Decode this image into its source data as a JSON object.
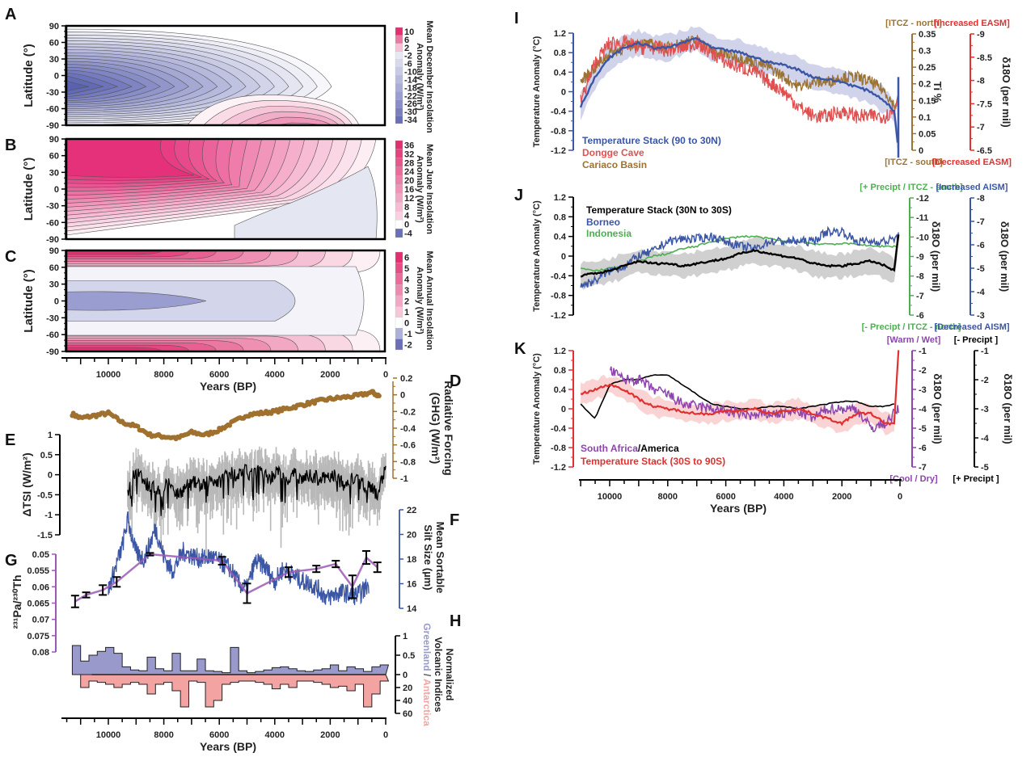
{
  "chart_data": [
    {
      "id": "A",
      "type": "heatmap",
      "ylabel": "Latitude (°)",
      "xlabel": "Years (BP)",
      "yticks": [
        90,
        60,
        30,
        0,
        -30,
        -60,
        -90
      ],
      "colorbar_label": "Mean December Insolation Anomaly (W/m²)",
      "colorbar_ticks": [
        10,
        6,
        2,
        -2,
        -6,
        -10,
        -14,
        -18,
        -22,
        -26,
        -30,
        -34
      ],
      "xlim": [
        11500,
        0
      ],
      "ylim": [
        -90,
        90
      ]
    },
    {
      "id": "B",
      "type": "heatmap",
      "ylabel": "Latitude (°)",
      "yticks": [
        90,
        60,
        30,
        0,
        -30,
        -60,
        -90
      ],
      "colorbar_label": "Mean June Insolation Anomaly (W/m²)",
      "colorbar_ticks": [
        36,
        32,
        28,
        24,
        20,
        16,
        12,
        8,
        4,
        0,
        -4
      ],
      "xlim": [
        11500,
        0
      ],
      "ylim": [
        -90,
        90
      ]
    },
    {
      "id": "C",
      "type": "heatmap",
      "ylabel": "Latitude (°)",
      "xlabel": "Years (BP)",
      "yticks": [
        90,
        60,
        30,
        0,
        -30,
        -60,
        -90
      ],
      "xticks": [
        10000,
        8000,
        6000,
        4000,
        2000,
        0
      ],
      "colorbar_label": "Mean Annual Insolation Anomaly (W/m²)",
      "colorbar_ticks": [
        6,
        5,
        4,
        3,
        2,
        1,
        0,
        -1,
        -2
      ],
      "xlim": [
        11500,
        0
      ],
      "ylim": [
        -90,
        90
      ]
    },
    {
      "id": "D",
      "type": "scatter",
      "ylabel": "Radiative Forcing (GHG) (W/m²)",
      "yticks": [
        0.2,
        0,
        -0.2,
        -0.4,
        -0.6,
        -0.8,
        -1
      ],
      "ylim": [
        -1,
        0.2
      ],
      "x": [
        11300,
        11000,
        10500,
        10000,
        9500,
        9000,
        8500,
        8000,
        7500,
        7000,
        6500,
        6000,
        5500,
        5000,
        4500,
        4000,
        3500,
        3000,
        2500,
        2000,
        1500,
        1000,
        500,
        200
      ],
      "y": [
        -0.23,
        -0.28,
        -0.25,
        -0.22,
        -0.33,
        -0.38,
        -0.48,
        -0.5,
        -0.52,
        -0.45,
        -0.48,
        -0.42,
        -0.33,
        -0.24,
        -0.22,
        -0.2,
        -0.16,
        -0.12,
        -0.08,
        -0.05,
        -0.03,
        -0.01,
        0.03,
        -0.02
      ],
      "color": "#a0702f"
    },
    {
      "id": "E",
      "type": "line",
      "ylabel": "ΔTSI (W/m²)",
      "yticks": [
        1,
        0.5,
        0,
        -0.5,
        -1,
        -1.5
      ],
      "ylim": [
        -1.5,
        1
      ],
      "x": [
        9300,
        9000,
        8700,
        8400,
        8100,
        7800,
        7500,
        7200,
        6900,
        6600,
        6300,
        6000,
        5700,
        5400,
        5100,
        4800,
        4500,
        4200,
        3900,
        3600,
        3300,
        3000,
        2700,
        2400,
        2100,
        1800,
        1500,
        1200,
        900,
        600,
        300,
        0
      ],
      "y": [
        -0.4,
        0.1,
        -0.2,
        -0.3,
        -0.4,
        -0.2,
        -0.5,
        -0.3,
        -0.2,
        -0.3,
        -0.1,
        -0.2,
        0.1,
        0.0,
        0.1,
        0.0,
        0.1,
        -0.1,
        0.1,
        -0.2,
        0.0,
        -0.1,
        0.0,
        -0.1,
        -0.1,
        0.0,
        -0.3,
        -0.1,
        -0.2,
        -0.3,
        -0.5,
        0.2
      ],
      "series_color": "#000000",
      "band_color": "#b8b8b8"
    },
    {
      "id": "F",
      "type": "line",
      "ylabel": "Mean Sortable Silt Size (µm)",
      "yticks": [
        22,
        20,
        18,
        16,
        14
      ],
      "ylim": [
        14,
        22
      ],
      "x": [
        10000,
        9500,
        9300,
        9000,
        8700,
        8300,
        8000,
        7700,
        7300,
        7000,
        6700,
        6300,
        6000,
        5600,
        5300,
        5000,
        4700,
        4400,
        4000,
        3700,
        3400,
        3000,
        2700,
        2400,
        2100,
        1800,
        1500,
        1200,
        900,
        600
      ],
      "y": [
        15.5,
        19.0,
        21.2,
        18.5,
        18.0,
        20.5,
        18.2,
        17.0,
        18.6,
        18.3,
        18.0,
        18.2,
        17.8,
        17.2,
        16.0,
        15.6,
        17.8,
        17.5,
        16.2,
        17.2,
        16.8,
        16.2,
        16.0,
        15.5,
        14.8,
        15.2,
        15.3,
        15.0,
        15.2,
        16.0
      ],
      "color": "#3a56a5"
    },
    {
      "id": "G",
      "type": "line",
      "ylabel": "231Pa/230Th",
      "yticks": [
        0.05,
        0.055,
        0.06,
        0.065,
        0.07,
        0.075,
        0.08
      ],
      "ylim": [
        0.08,
        0.05
      ],
      "x": [
        11200,
        10800,
        10200,
        9700,
        8500,
        5900,
        5000,
        3500,
        2500,
        1800,
        1200,
        700,
        300
      ],
      "y": [
        0.0645,
        0.0625,
        0.061,
        0.0585,
        0.05,
        0.052,
        0.062,
        0.0555,
        0.0545,
        0.053,
        0.06,
        0.051,
        0.054
      ],
      "err": [
        0.0018,
        0.0008,
        0.0015,
        0.0015,
        0.0004,
        0.0012,
        0.003,
        0.0015,
        0.001,
        0.001,
        0.0035,
        0.002,
        0.0015
      ],
      "color": "#9b59b6"
    },
    {
      "id": "H",
      "type": "bar",
      "ylabel": "Normalized Volcanic Indices",
      "legend": [
        "Greenland",
        "Antarctica"
      ],
      "yticks": [
        1,
        0.5,
        0,
        20,
        40,
        60
      ],
      "xticks": [
        10000,
        8000,
        6000,
        4000,
        2000,
        0
      ],
      "xlabel": "Years (BP)",
      "greenland_x": [
        11300,
        11000,
        10700,
        10400,
        10100,
        9800,
        9500,
        9200,
        8900,
        8600,
        8300,
        8000,
        7700,
        7400,
        7100,
        6800,
        6500,
        6200,
        5900,
        5600,
        5300,
        5000,
        4700,
        4400,
        4100,
        3800,
        3500,
        3200,
        2900,
        2600,
        2300,
        2000,
        1700,
        1400,
        1100,
        800,
        500,
        200
      ],
      "greenland_y": [
        0.75,
        0.35,
        0.5,
        0.6,
        0.7,
        0.55,
        0.2,
        0.12,
        0.1,
        0.45,
        0.15,
        0.1,
        0.55,
        0.1,
        0.1,
        0.4,
        0.1,
        0.08,
        0.05,
        0.7,
        0.1,
        0.05,
        0.08,
        0.12,
        0.18,
        0.2,
        0.15,
        0.1,
        0.08,
        0.12,
        0.15,
        0.25,
        0.1,
        0.2,
        0.15,
        0.08,
        0.2,
        0.25
      ],
      "antarctica_x": [
        11000,
        10700,
        10400,
        10100,
        9800,
        9500,
        9200,
        8900,
        8600,
        8300,
        8000,
        7700,
        7400,
        7100,
        6800,
        6500,
        6200,
        5900,
        5600,
        5300,
        5000,
        4700,
        4400,
        4100,
        3800,
        3500,
        3200,
        2900,
        2600,
        2300,
        2000,
        1700,
        1400,
        1100,
        800,
        500,
        200
      ],
      "antarctica_y": [
        20,
        10,
        12,
        15,
        20,
        15,
        12,
        15,
        30,
        15,
        12,
        25,
        50,
        10,
        12,
        50,
        40,
        15,
        12,
        10,
        10,
        12,
        15,
        22,
        15,
        20,
        10,
        10,
        12,
        15,
        20,
        18,
        25,
        15,
        50,
        30,
        10
      ],
      "colors": {
        "greenland": "#9999cc",
        "antarctica": "#f4a3a3"
      }
    },
    {
      "id": "I",
      "type": "line",
      "ylabel": "Temperature Anomaly (°C)",
      "yticks": [
        1.2,
        0.8,
        0.4,
        0,
        -0.4,
        -0.8,
        -1.2
      ],
      "ylim": [
        -1.2,
        1.2
      ],
      "right_axes": [
        {
          "label": "Ti %",
          "ticks": [
            0.35,
            0.3,
            0.25,
            0.2,
            0.15,
            0.1,
            0.05,
            0
          ],
          "top": "[ITCZ - north]",
          "bottom": "[ITCZ - south]",
          "color": "#9b7334"
        },
        {
          "label": "δ18O (per mil)",
          "ticks": [
            -9,
            -8.5,
            -8,
            -7.5,
            -7,
            -6.5
          ],
          "top": "[Increased EASM]",
          "bottom": "[Decreased EASM]",
          "color": "#e03030"
        }
      ],
      "legend": [
        "Temperature Stack (90 to 30N)",
        "Dongge Cave",
        "Cariaco Basin"
      ],
      "x": [
        11000,
        10500,
        10000,
        9500,
        9000,
        8500,
        8000,
        7500,
        7000,
        6500,
        6000,
        5500,
        5000,
        4500,
        4000,
        3500,
        3000,
        2500,
        2000,
        1500,
        1000,
        500,
        200,
        50
      ],
      "series": [
        {
          "name": "Temperature Stack (90 to 30N)",
          "color": "#3a56a5",
          "values": [
            -0.3,
            0.3,
            0.7,
            0.9,
            1.0,
            0.9,
            0.9,
            1.0,
            1.1,
            0.9,
            0.85,
            0.8,
            0.7,
            0.6,
            0.55,
            0.45,
            0.3,
            0.25,
            0.2,
            0.1,
            0.0,
            -0.2,
            -0.4,
            -1.2
          ]
        },
        {
          "name": "Dongge Cave",
          "color": "#e05050",
          "values": [
            -0.2,
            0.6,
            1.0,
            1.0,
            0.9,
            0.9,
            0.85,
            0.9,
            1.0,
            0.8,
            0.6,
            0.5,
            0.4,
            0.2,
            0.0,
            -0.3,
            -0.5,
            -0.5,
            -0.4,
            -0.5,
            -0.5,
            -0.5,
            -0.4,
            0.0
          ]
        },
        {
          "name": "Cariaco Basin",
          "color": "#9b7334",
          "values": [
            0.2,
            0.5,
            0.8,
            0.9,
            1.0,
            0.95,
            0.9,
            1.0,
            1.05,
            0.85,
            0.75,
            0.7,
            0.6,
            0.5,
            0.3,
            0.1,
            0.2,
            0.2,
            0.3,
            0.3,
            0.2,
            0.0,
            -0.3,
            -0.2
          ]
        }
      ]
    },
    {
      "id": "J",
      "type": "line",
      "ylabel": "Temperature Anomaly (°C)",
      "yticks": [
        1.2,
        0.8,
        0.4,
        0,
        -0.4,
        -0.8,
        -1.2
      ],
      "ylim": [
        -1.2,
        1.2
      ],
      "right_axes": [
        {
          "label": "δ18O (per mil)",
          "ticks": [
            -12,
            -11,
            -10,
            -9,
            -8,
            -7,
            -6
          ],
          "top": "[+ Precipt / ITCZ - south]",
          "bottom": "[- Precipt / ITCZ - north]",
          "color": "#4caf50"
        },
        {
          "label": "δ18O (per mil)",
          "ticks": [
            -8,
            -7,
            -6,
            -5,
            -4,
            -3
          ],
          "top": "[Increased AISM]",
          "bottom": "[Decreased AISM]",
          "color": "#3a56a5"
        }
      ],
      "legend": [
        "Temperature Stack (30N to 30S)",
        "Borneo",
        "Indonesia"
      ],
      "x": [
        11000,
        10500,
        10000,
        9500,
        9000,
        8500,
        8000,
        7500,
        7000,
        6500,
        6000,
        5500,
        5000,
        4500,
        4000,
        3500,
        3000,
        2500,
        2000,
        1500,
        1000,
        500,
        200,
        50
      ],
      "series": [
        {
          "name": "Temperature Stack (30N to 30S)",
          "color": "#000000",
          "values": [
            -0.4,
            -0.35,
            -0.3,
            -0.2,
            -0.1,
            -0.15,
            -0.15,
            -0.2,
            -0.15,
            -0.1,
            -0.05,
            0.05,
            0.12,
            0.05,
            0.0,
            -0.05,
            -0.15,
            -0.2,
            -0.2,
            -0.15,
            -0.1,
            -0.2,
            -0.3,
            0.45
          ]
        },
        {
          "name": "Borneo",
          "color": "#3a56a5",
          "values": [
            -0.6,
            -0.5,
            -0.3,
            -0.2,
            0.0,
            0.1,
            0.3,
            0.35,
            0.35,
            0.4,
            0.3,
            0.2,
            0.15,
            0.3,
            0.3,
            0.3,
            0.3,
            0.5,
            0.5,
            0.3,
            0.3,
            0.3,
            0.35,
            0.4
          ]
        },
        {
          "name": "Indonesia",
          "color": "#4caf50",
          "values": [
            -0.25,
            -0.3,
            -0.25,
            -0.2,
            -0.1,
            0.0,
            0.05,
            0.15,
            0.2,
            0.3,
            0.35,
            0.4,
            0.4,
            0.35,
            0.3,
            0.3,
            0.25,
            0.25,
            0.25,
            0.25,
            0.2,
            0.2,
            0.2,
            0.2
          ]
        }
      ]
    },
    {
      "id": "K",
      "type": "line",
      "ylabel": "Temperature Anomaly (°C)",
      "xlabel": "Years (BP)",
      "yticks": [
        1.2,
        0.8,
        0.4,
        0,
        -0.4,
        -0.8,
        -1.2
      ],
      "xticks": [
        10000,
        8000,
        6000,
        4000,
        2000,
        0
      ],
      "ylim": [
        -1.2,
        1.2
      ],
      "xlim": [
        11500,
        0
      ],
      "right_axes": [
        {
          "label": "δ18O (per mil)",
          "ticks": [
            -1,
            -2,
            -3,
            -4,
            -5,
            -6,
            -7
          ],
          "top": "[Warm / Wet]",
          "bottom": "[Cool / Dry]",
          "color": "#8e44ad"
        },
        {
          "label": "δ18O (per mil)",
          "ticks": [
            -1,
            -2,
            -3,
            -4,
            -5
          ],
          "top": "[- Precipt ]",
          "bottom": "[+ Precipt ]",
          "color": "#000000"
        }
      ],
      "legend": [
        "South Africa",
        "America",
        "Temperature Stack (30S to 90S)"
      ],
      "x": [
        11000,
        10500,
        10000,
        9500,
        9000,
        8500,
        8000,
        7500,
        7000,
        6500,
        6000,
        5500,
        5000,
        4500,
        4000,
        3500,
        3000,
        2500,
        2000,
        1500,
        1000,
        500,
        200,
        50
      ],
      "series": [
        {
          "name": "Temperature Stack (30S to 90S)",
          "color": "#e03030",
          "values": [
            0.3,
            0.4,
            0.5,
            0.4,
            0.2,
            0.05,
            0.0,
            -0.05,
            -0.1,
            -0.1,
            -0.05,
            -0.05,
            0.0,
            -0.1,
            -0.05,
            0.0,
            -0.1,
            -0.2,
            -0.3,
            -0.1,
            -0.1,
            -0.3,
            -0.3,
            1.2
          ]
        },
        {
          "name": "South Africa",
          "color": "#8e44ad",
          "values": [
            null,
            null,
            0.8,
            0.6,
            0.6,
            0.4,
            0.3,
            0.1,
            0.05,
            0.0,
            -0.05,
            -0.1,
            -0.15,
            -0.1,
            -0.1,
            -0.05,
            -0.2,
            0.0,
            0.0,
            0.0,
            -0.4,
            -0.3,
            -0.1,
            0.0
          ]
        },
        {
          "name": "America",
          "color": "#000000",
          "values": [
            0.1,
            -0.2,
            0.5,
            0.6,
            0.6,
            0.7,
            0.7,
            0.5,
            0.3,
            0.1,
            0.05,
            0.0,
            0.0,
            0.05,
            0.05,
            0.0,
            0.05,
            0.1,
            0.15,
            0.15,
            0.05,
            0.05,
            0.1,
            null
          ]
        }
      ]
    }
  ],
  "panels": {
    "A": "A",
    "B": "B",
    "C": "C",
    "D": "D",
    "E": "E",
    "F": "F",
    "G": "G",
    "H": "H",
    "I": "I",
    "J": "J",
    "K": "K"
  },
  "labels": {
    "latitude": "Latitude (°)",
    "years": "Years (BP)",
    "cbA1": "Mean December Insolation",
    "cbA2": "Anomaly (W/m²)",
    "cbB1": "Mean June Insolation",
    "cbB2": "Anomaly (W/m²)",
    "cbC1": "Mean Annual Insolation",
    "cbC2": "Anomaly (W/m²)",
    "D1": "Radiative Forcing",
    "D2": "(GHG) (W/m²)",
    "E": "ΔTSI (W/m²)",
    "F1": "Mean Sortable",
    "F2": "Silt Size (µm)",
    "G": "²³¹Pa/²³⁰Th",
    "H1": "Normalized",
    "H2": "Volcanic Indices",
    "H3a": "Greenland",
    "H3b": " / ",
    "H3c": "Antarctica",
    "tempAnom": "Temperature Anomaly (°C)",
    "ti": "Ti %",
    "d18o": "δ¹⁸O (per mil)"
  }
}
